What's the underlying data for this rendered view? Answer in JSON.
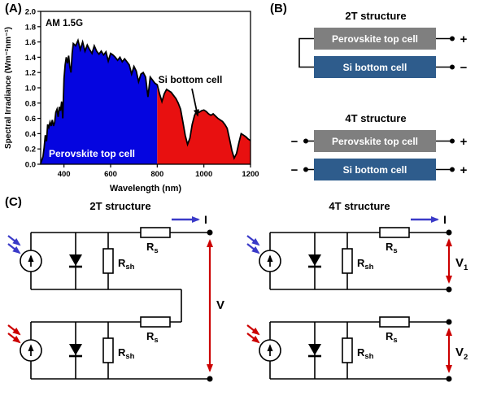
{
  "figure": {
    "panel_a_label": "(A)",
    "panel_b_label": "(B)",
    "panel_c_label": "(C)"
  },
  "chart_data": {
    "type": "area",
    "title": "",
    "annotation": "AM 1.5G",
    "xlabel": "Wavelength (nm)",
    "ylabel": "Spectral Irradiance (Wm⁻²nm⁻¹)",
    "xlim": [
      300,
      1200
    ],
    "ylim": [
      0,
      2.0
    ],
    "x_ticks": [
      400,
      600,
      800,
      1000,
      1200
    ],
    "y_tick_labels": [
      "0.0",
      "0.2",
      "0.4",
      "0.6",
      "0.8",
      "1.0",
      "1.2",
      "1.4",
      "1.6",
      "1.8",
      "2.0"
    ],
    "grid": false,
    "regions": [
      {
        "label": "Perovskite top cell",
        "color": "#0505e0",
        "range": [
          300,
          800
        ]
      },
      {
        "label": "Si bottom cell",
        "color": "#e81010",
        "range": [
          800,
          1200
        ]
      }
    ],
    "x": [
      300,
      310,
      315,
      320,
      325,
      330,
      335,
      340,
      345,
      350,
      355,
      360,
      365,
      370,
      375,
      380,
      385,
      390,
      395,
      400,
      405,
      410,
      415,
      420,
      425,
      430,
      435,
      440,
      450,
      460,
      470,
      480,
      490,
      500,
      510,
      520,
      530,
      540,
      550,
      560,
      570,
      580,
      590,
      600,
      610,
      620,
      630,
      640,
      650,
      660,
      670,
      680,
      690,
      700,
      710,
      720,
      730,
      740,
      750,
      760,
      770,
      780,
      790,
      800,
      810,
      820,
      830,
      840,
      850,
      860,
      870,
      880,
      890,
      900,
      910,
      920,
      930,
      940,
      950,
      960,
      970,
      980,
      990,
      1000,
      1010,
      1020,
      1030,
      1040,
      1050,
      1060,
      1070,
      1080,
      1090,
      1100,
      1110,
      1120,
      1130,
      1140,
      1150,
      1160,
      1170,
      1180,
      1190,
      1200
    ],
    "y": [
      0.01,
      0.1,
      0.22,
      0.38,
      0.3,
      0.52,
      0.48,
      0.55,
      0.5,
      0.58,
      0.5,
      0.55,
      0.68,
      0.72,
      0.62,
      0.75,
      0.7,
      0.82,
      0.6,
      1.12,
      1.3,
      1.4,
      1.32,
      1.42,
      1.28,
      1.2,
      1.45,
      1.58,
      1.55,
      1.62,
      1.5,
      1.6,
      1.48,
      1.56,
      1.5,
      1.45,
      1.55,
      1.48,
      1.44,
      1.48,
      1.43,
      1.47,
      1.35,
      1.45,
      1.43,
      1.4,
      1.36,
      1.4,
      1.34,
      1.38,
      1.34,
      1.3,
      1.18,
      1.28,
      1.22,
      1.08,
      1.18,
      1.2,
      1.14,
      0.88,
      1.14,
      1.1,
      1.06,
      1.04,
      0.92,
      0.82,
      0.92,
      0.98,
      0.96,
      0.94,
      0.9,
      0.86,
      0.8,
      0.72,
      0.55,
      0.38,
      0.26,
      0.34,
      0.52,
      0.64,
      0.7,
      0.68,
      0.7,
      0.71,
      0.69,
      0.66,
      0.64,
      0.66,
      0.63,
      0.6,
      0.58,
      0.56,
      0.52,
      0.47,
      0.33,
      0.18,
      0.08,
      0.14,
      0.28,
      0.4,
      0.38,
      0.36,
      0.33,
      0.31
    ]
  },
  "structures": {
    "t2": {
      "title": "2T structure"
    },
    "t4": {
      "title": "4T structure"
    },
    "top_cell": "Perovskite top cell",
    "bottom_cell": "Si bottom cell",
    "plus": "+",
    "minus": "−"
  },
  "circuits": {
    "t2_title": "2T structure",
    "t4_title": "4T structure"
  },
  "labels": {
    "r": "R",
    "s": "s",
    "sh": "sh",
    "i": "I",
    "v": "V",
    "one": "1",
    "two": "2"
  },
  "colors": {
    "perovskite_box": "#7f7f7f",
    "si_box": "#2e5c8c",
    "blue_arrow": "#3a3ac8",
    "red_arrow": "#cc0000",
    "wire": "#000000"
  }
}
